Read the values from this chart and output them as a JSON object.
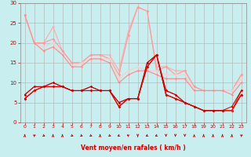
{
  "title": "",
  "xlabel": "Vent moyen/en rafales ( km/h )",
  "bg_color": "#c8eef0",
  "grid_color": "#b0b0b0",
  "xlim": [
    -0.5,
    23.5
  ],
  "ylim": [
    0,
    30
  ],
  "xticks": [
    0,
    1,
    2,
    3,
    4,
    5,
    6,
    7,
    8,
    9,
    10,
    11,
    12,
    13,
    14,
    15,
    16,
    17,
    18,
    19,
    20,
    21,
    22,
    23
  ],
  "yticks": [
    0,
    5,
    10,
    15,
    20,
    25,
    30
  ],
  "series": [
    {
      "x": [
        0,
        1,
        2,
        3,
        4,
        5,
        6,
        7,
        8,
        9,
        10,
        11,
        12,
        13,
        14,
        15,
        16,
        17,
        18,
        19,
        20,
        21,
        22,
        23
      ],
      "y": [
        27,
        20,
        20,
        24,
        18,
        15,
        15,
        17,
        17,
        17,
        13,
        23,
        29,
        28,
        14,
        14,
        13,
        13,
        9,
        8,
        8,
        8,
        8,
        12
      ],
      "color": "#ffaaaa",
      "lw": 0.8,
      "marker": "D",
      "ms": 1.8
    },
    {
      "x": [
        0,
        1,
        2,
        3,
        4,
        5,
        6,
        7,
        8,
        9,
        10,
        11,
        12,
        13,
        14,
        15,
        16,
        17,
        18,
        19,
        20,
        21,
        22,
        23
      ],
      "y": [
        27,
        20,
        20,
        21,
        18,
        15,
        15,
        17,
        17,
        16,
        12,
        22,
        29,
        28,
        13,
        14,
        12,
        13,
        9,
        8,
        8,
        8,
        8,
        12
      ],
      "color": "#ff9999",
      "lw": 0.8,
      "marker": "D",
      "ms": 1.8
    },
    {
      "x": [
        0,
        1,
        2,
        3,
        4,
        5,
        6,
        7,
        8,
        9,
        10,
        11,
        12,
        13,
        14,
        15,
        16,
        17,
        18,
        19,
        20,
        21,
        22,
        23
      ],
      "y": [
        27,
        20,
        19,
        20,
        17,
        14,
        15,
        16,
        16,
        16,
        11,
        13,
        14,
        13,
        13,
        12,
        12,
        12,
        8,
        8,
        8,
        8,
        8,
        11
      ],
      "color": "#ffcccc",
      "lw": 0.8,
      "marker": "D",
      "ms": 1.8
    },
    {
      "x": [
        0,
        1,
        2,
        3,
        4,
        5,
        6,
        7,
        8,
        9,
        10,
        11,
        12,
        13,
        14,
        15,
        16,
        17,
        18,
        19,
        20,
        21,
        22,
        23
      ],
      "y": [
        27,
        20,
        18,
        19,
        17,
        14,
        14,
        16,
        16,
        15,
        10,
        12,
        13,
        13,
        12,
        11,
        11,
        11,
        8,
        8,
        8,
        8,
        7,
        10
      ],
      "color": "#ff8888",
      "lw": 0.8,
      "marker": "D",
      "ms": 1.5
    },
    {
      "x": [
        0,
        1,
        2,
        3,
        4,
        5,
        6,
        7,
        8,
        9,
        10,
        11,
        12,
        13,
        14,
        15,
        16,
        17,
        18,
        19,
        20,
        21,
        22,
        23
      ],
      "y": [
        6,
        8,
        9,
        9,
        9,
        8,
        8,
        8,
        8,
        8,
        4,
        6,
        6,
        14,
        17,
        7,
        6,
        5,
        4,
        3,
        3,
        3,
        3,
        7
      ],
      "color": "#cc0000",
      "lw": 0.8,
      "marker": "D",
      "ms": 1.8
    },
    {
      "x": [
        0,
        1,
        2,
        3,
        4,
        5,
        6,
        7,
        8,
        9,
        10,
        11,
        12,
        13,
        14,
        15,
        16,
        17,
        18,
        19,
        20,
        21,
        22,
        23
      ],
      "y": [
        6,
        8,
        9,
        9,
        9,
        8,
        8,
        8,
        8,
        8,
        4,
        6,
        6,
        14,
        17,
        7,
        6,
        5,
        4,
        3,
        3,
        3,
        3,
        7
      ],
      "color": "#dd0000",
      "lw": 0.8,
      "marker": "D",
      "ms": 1.8
    },
    {
      "x": [
        0,
        1,
        2,
        3,
        4,
        5,
        6,
        7,
        8,
        9,
        10,
        11,
        12,
        13,
        14,
        15,
        16,
        17,
        18,
        19,
        20,
        21,
        22,
        23
      ],
      "y": [
        7,
        9,
        9,
        10,
        9,
        8,
        8,
        9,
        8,
        8,
        5,
        6,
        6,
        15,
        17,
        8,
        7,
        5,
        4,
        3,
        3,
        3,
        3,
        8
      ],
      "color": "#ee2222",
      "lw": 0.8,
      "marker": "D",
      "ms": 1.8
    },
    {
      "x": [
        0,
        1,
        2,
        3,
        4,
        5,
        6,
        7,
        8,
        9,
        10,
        11,
        12,
        13,
        14,
        15,
        16,
        17,
        18,
        19,
        20,
        21,
        22,
        23
      ],
      "y": [
        7,
        9,
        9,
        10,
        9,
        8,
        8,
        9,
        8,
        8,
        5,
        6,
        6,
        15,
        17,
        8,
        7,
        5,
        4,
        3,
        3,
        3,
        4,
        8
      ],
      "color": "#bb0000",
      "lw": 0.7,
      "marker": "D",
      "ms": 1.5
    }
  ],
  "arrow_color": "#cc0000",
  "label_color": "#cc0000",
  "tick_color": "#cc0000",
  "axis_color": "#888888",
  "arrow_dirs": [
    0,
    45,
    135,
    0,
    0,
    135,
    135,
    135,
    0,
    135,
    225,
    315,
    180,
    225,
    225,
    180,
    180,
    180,
    0,
    0,
    0,
    0,
    0,
    45
  ]
}
